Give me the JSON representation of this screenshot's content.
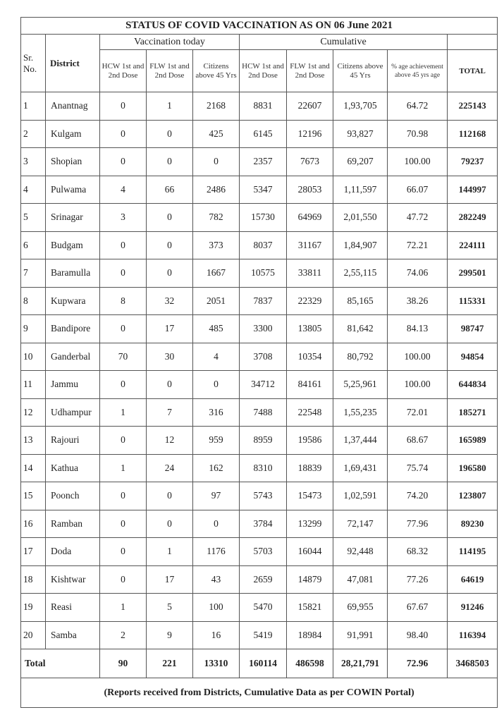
{
  "title": "STATUS OF COVID VACCINATION AS ON 06 June 2021",
  "headers": {
    "sr_no": "Sr. No.",
    "district": "District",
    "vaccination_today": "Vaccination today",
    "cumulative": "Cumulative",
    "today_hcw": "HCW 1st and 2nd Dose",
    "today_flw": "FLW 1st and 2nd Dose",
    "today_citizens": "Citizens above 45 Yrs",
    "cum_hcw": "HCW 1st and 2nd Dose",
    "cum_flw": "FLW 1st and 2nd Dose",
    "cum_citizens": "Citizens above 45 Yrs",
    "pct": "% age achievement above 45 yrs age",
    "total": "TOTAL"
  },
  "rows": [
    [
      "1",
      "Anantnag",
      "0",
      "1",
      "2168",
      "8831",
      "22607",
      "1,93,705",
      "64.72",
      "225143"
    ],
    [
      "2",
      "Kulgam",
      "0",
      "0",
      "425",
      "6145",
      "12196",
      "93,827",
      "70.98",
      "112168"
    ],
    [
      "3",
      "Shopian",
      "0",
      "0",
      "0",
      "2357",
      "7673",
      "69,207",
      "100.00",
      "79237"
    ],
    [
      "4",
      "Pulwama",
      "4",
      "66",
      "2486",
      "5347",
      "28053",
      "1,11,597",
      "66.07",
      "144997"
    ],
    [
      "5",
      "Srinagar",
      "3",
      "0",
      "782",
      "15730",
      "64969",
      "2,01,550",
      "47.72",
      "282249"
    ],
    [
      "6",
      "Budgam",
      "0",
      "0",
      "373",
      "8037",
      "31167",
      "1,84,907",
      "72.21",
      "224111"
    ],
    [
      "7",
      "Baramulla",
      "0",
      "0",
      "1667",
      "10575",
      "33811",
      "2,55,115",
      "74.06",
      "299501"
    ],
    [
      "8",
      "Kupwara",
      "8",
      "32",
      "2051",
      "7837",
      "22329",
      "85,165",
      "38.26",
      "115331"
    ],
    [
      "9",
      "Bandipore",
      "0",
      "17",
      "485",
      "3300",
      "13805",
      "81,642",
      "84.13",
      "98747"
    ],
    [
      "10",
      "Ganderbal",
      "70",
      "30",
      "4",
      "3708",
      "10354",
      "80,792",
      "100.00",
      "94854"
    ],
    [
      "11",
      "Jammu",
      "0",
      "0",
      "0",
      "34712",
      "84161",
      "5,25,961",
      "100.00",
      "644834"
    ],
    [
      "12",
      "Udhampur",
      "1",
      "7",
      "316",
      "7488",
      "22548",
      "1,55,235",
      "72.01",
      "185271"
    ],
    [
      "13",
      "Rajouri",
      "0",
      "12",
      "959",
      "8959",
      "19586",
      "1,37,444",
      "68.67",
      "165989"
    ],
    [
      "14",
      "Kathua",
      "1",
      "24",
      "162",
      "8310",
      "18839",
      "1,69,431",
      "75.74",
      "196580"
    ],
    [
      "15",
      "Poonch",
      "0",
      "0",
      "97",
      "5743",
      "15473",
      "1,02,591",
      "74.20",
      "123807"
    ],
    [
      "16",
      "Ramban",
      "0",
      "0",
      "0",
      "3784",
      "13299",
      "72,147",
      "77.96",
      "89230"
    ],
    [
      "17",
      "Doda",
      "0",
      "1",
      "1176",
      "5703",
      "16044",
      "92,448",
      "68.32",
      "114195"
    ],
    [
      "18",
      "Kishtwar",
      "0",
      "17",
      "43",
      "2659",
      "14879",
      "47,081",
      "77.26",
      "64619"
    ],
    [
      "19",
      "Reasi",
      "1",
      "5",
      "100",
      "5470",
      "15821",
      "69,955",
      "67.67",
      "91246"
    ],
    [
      "20",
      "Samba",
      "2",
      "9",
      "16",
      "5419",
      "18984",
      "91,991",
      "98.40",
      "116394"
    ]
  ],
  "total_row": [
    "Total",
    "90",
    "221",
    "13310",
    "160114",
    "486598",
    "28,21,791",
    "72.96",
    "3468503"
  ],
  "footer": "(Reports received from Districts, Cumulative Data as per COWIN Portal)"
}
